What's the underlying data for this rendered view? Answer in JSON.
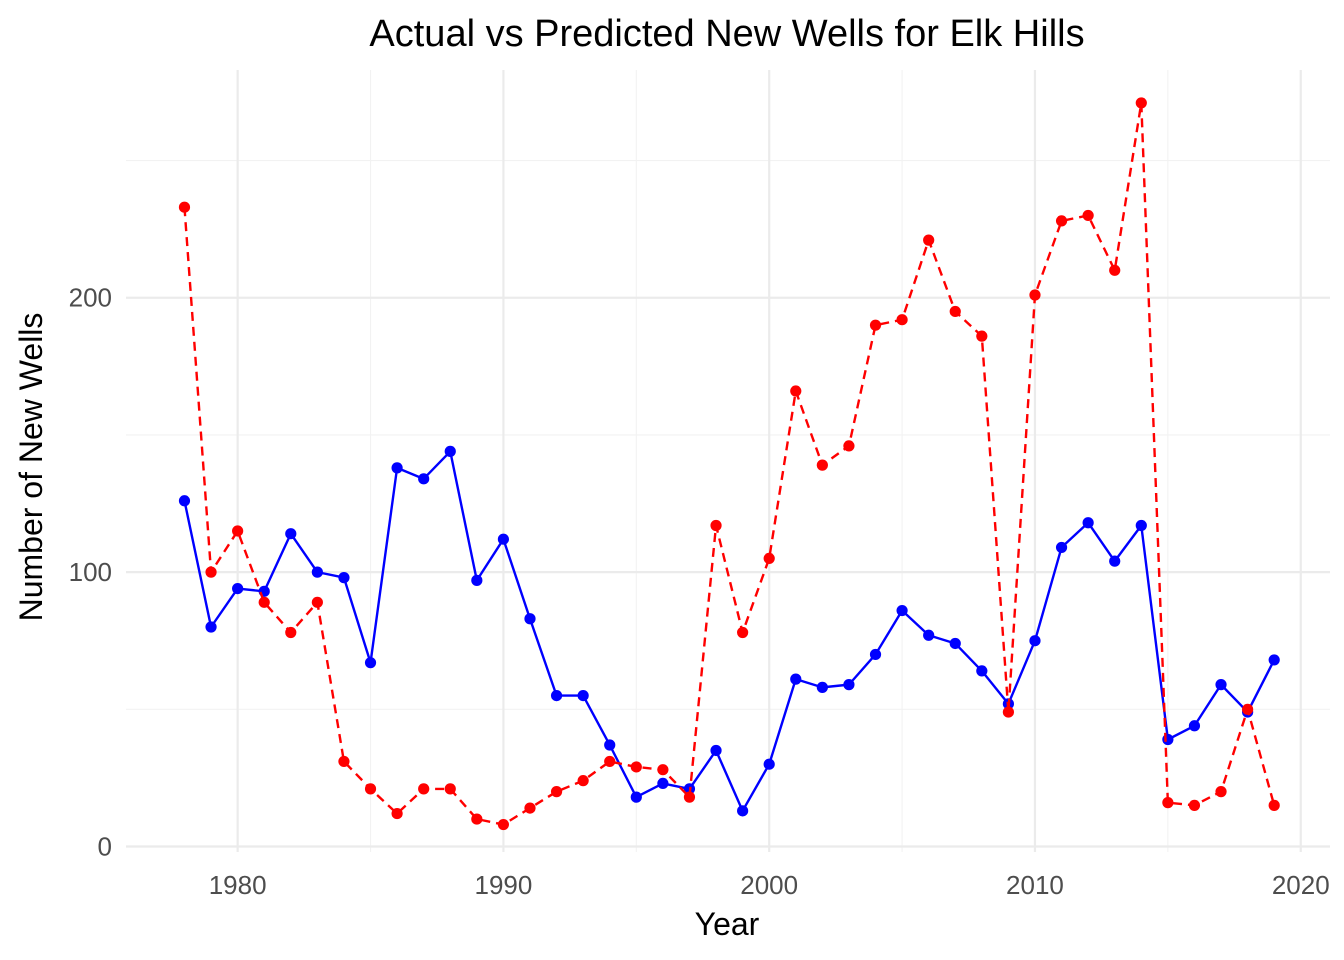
{
  "chart_data": {
    "type": "line",
    "title": "Actual vs Predicted New Wells for Elk Hills",
    "xlabel": "Year",
    "ylabel": "Number of New Wells",
    "xlim": [
      1975.8,
      2021.1
    ],
    "ylim": [
      -2,
      283
    ],
    "x_ticks": [
      1980,
      1990,
      2000,
      2010,
      2020
    ],
    "y_ticks": [
      0,
      100,
      200
    ],
    "grid": true,
    "legend": "none",
    "x": [
      1978,
      1979,
      1980,
      1981,
      1982,
      1983,
      1984,
      1985,
      1986,
      1987,
      1988,
      1989,
      1990,
      1991,
      1992,
      1993,
      1994,
      1995,
      1996,
      1997,
      1998,
      1999,
      2000,
      2001,
      2002,
      2003,
      2004,
      2005,
      2006,
      2007,
      2008,
      2009,
      2010,
      2011,
      2012,
      2013,
      2014,
      2015,
      2016,
      2017,
      2018,
      2019
    ],
    "series": [
      {
        "color": "#0000ff",
        "line_style": "solid",
        "values": [
          126,
          80,
          94,
          93,
          114,
          100,
          98,
          67,
          138,
          134,
          144,
          97,
          112,
          83,
          55,
          55,
          37,
          18,
          23,
          21,
          35,
          13,
          30,
          61,
          58,
          59,
          70,
          86,
          77,
          74,
          64,
          52,
          75,
          109,
          118,
          104,
          117,
          39,
          44,
          59,
          49,
          68
        ]
      },
      {
        "color": "#ff0000",
        "line_style": "dashed",
        "values": [
          233,
          100,
          115,
          89,
          78,
          89,
          31,
          21,
          12,
          21,
          21,
          10,
          8,
          14,
          20,
          24,
          31,
          29,
          28,
          18,
          117,
          78,
          105,
          166,
          139,
          146,
          190,
          192,
          221,
          195,
          186,
          49,
          201,
          228,
          230,
          210,
          271,
          16,
          15,
          20,
          50,
          15
        ]
      }
    ]
  }
}
